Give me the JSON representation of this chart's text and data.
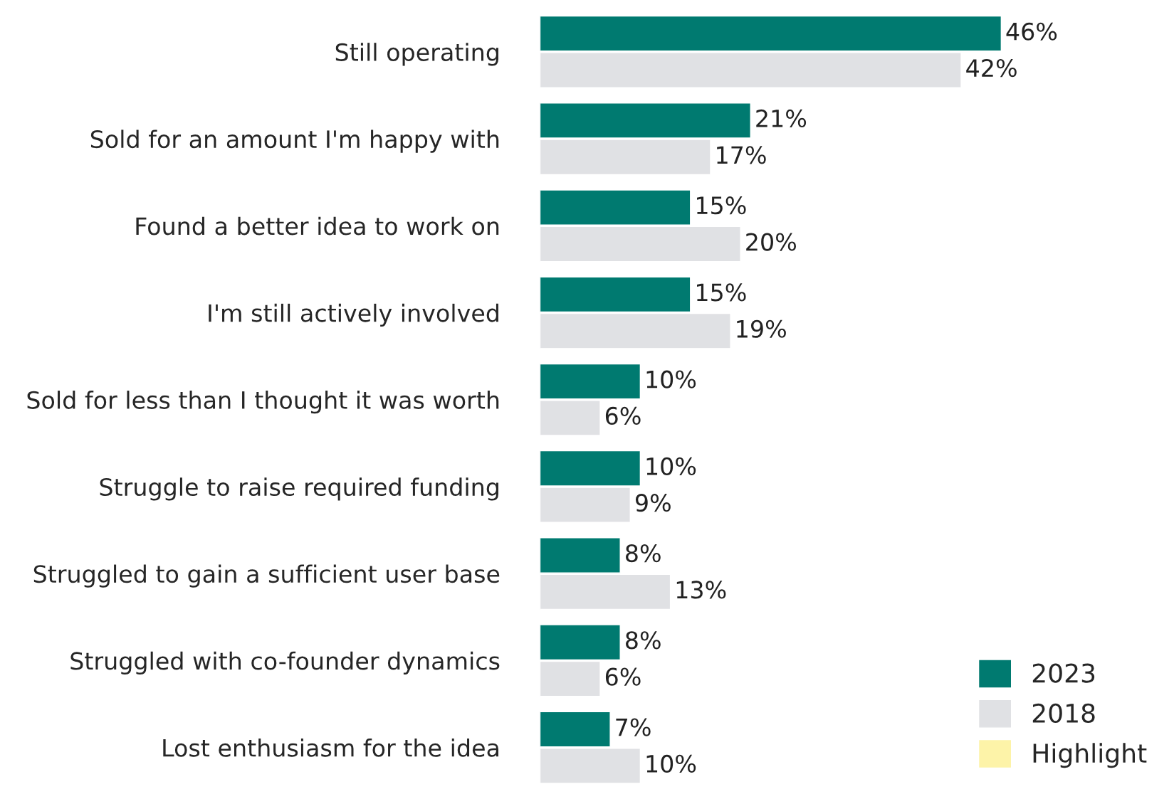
{
  "chart_data": {
    "type": "bar",
    "orientation": "horizontal",
    "legend": "bottom right",
    "grid": false,
    "categories": [
      "Still operating",
      "Sold for an amount I'm happy with",
      "Found a better idea to work on",
      "I'm still actively involved",
      "Sold for less than I thought it was worth",
      "Struggle to raise required funding",
      "Struggled to gain a sufficient user base",
      "Struggled with co-founder dynamics",
      "Lost enthusiasm for the idea"
    ],
    "series": [
      {
        "name": "2023",
        "color": "#007a70",
        "values": [
          46,
          21,
          15,
          15,
          10,
          10,
          8,
          8,
          7
        ],
        "value_labels": [
          "46%",
          "21%",
          "15%",
          "15%",
          "10%",
          "10%",
          "8%",
          "8%",
          "7%"
        ]
      },
      {
        "name": "2018",
        "color": "#e0e1e4",
        "values": [
          42,
          17,
          20,
          19,
          6,
          9,
          13,
          6,
          10
        ],
        "value_labels": [
          "42%",
          "17%",
          "20%",
          "19%",
          "6%",
          "9%",
          "13%",
          "6%",
          "10%"
        ]
      },
      {
        "name": "Highlight",
        "color": "#fdf3a8",
        "values": [
          null,
          null,
          null,
          null,
          null,
          null,
          null,
          null,
          null
        ]
      }
    ]
  }
}
